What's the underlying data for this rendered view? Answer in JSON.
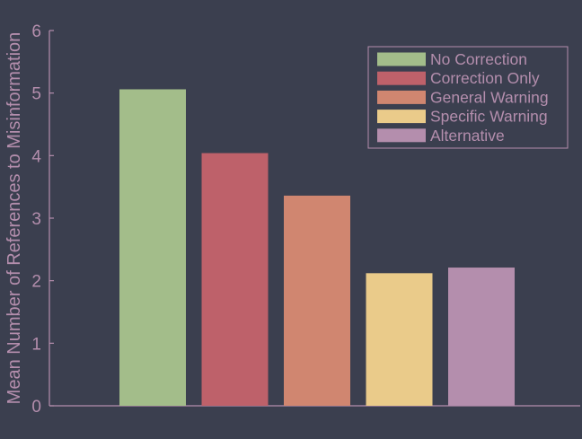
{
  "chart_data": {
    "type": "bar",
    "title": "",
    "xlabel": "",
    "ylabel": "Mean Number of References to Misinformation",
    "ylim": [
      0,
      6
    ],
    "yticks": [
      0,
      1,
      2,
      3,
      4,
      5,
      6
    ],
    "grid": false,
    "legend_position": "top-right",
    "categories": [
      "No Correction",
      "Correction Only",
      "General Warning",
      "Specific Warning",
      "Alternative"
    ],
    "values": [
      5.06,
      4.04,
      3.36,
      2.12,
      2.21
    ],
    "colors": [
      "#a3bd8a",
      "#be616a",
      "#d08670",
      "#eacb8a",
      "#b48ead"
    ],
    "series": [
      {
        "name": "No Correction",
        "value": 5.06,
        "color": "#a3bd8a"
      },
      {
        "name": "Correction Only",
        "value": 4.04,
        "color": "#be616a"
      },
      {
        "name": "General Warning",
        "value": 3.36,
        "color": "#d08670"
      },
      {
        "name": "Specific Warning",
        "value": 2.12,
        "color": "#eacb8a"
      },
      {
        "name": "Alternative",
        "value": 2.21,
        "color": "#b48ead"
      }
    ],
    "text_color": "#b48ead",
    "axis_color": "#b48ead",
    "background_color": "#3b3f4f"
  }
}
